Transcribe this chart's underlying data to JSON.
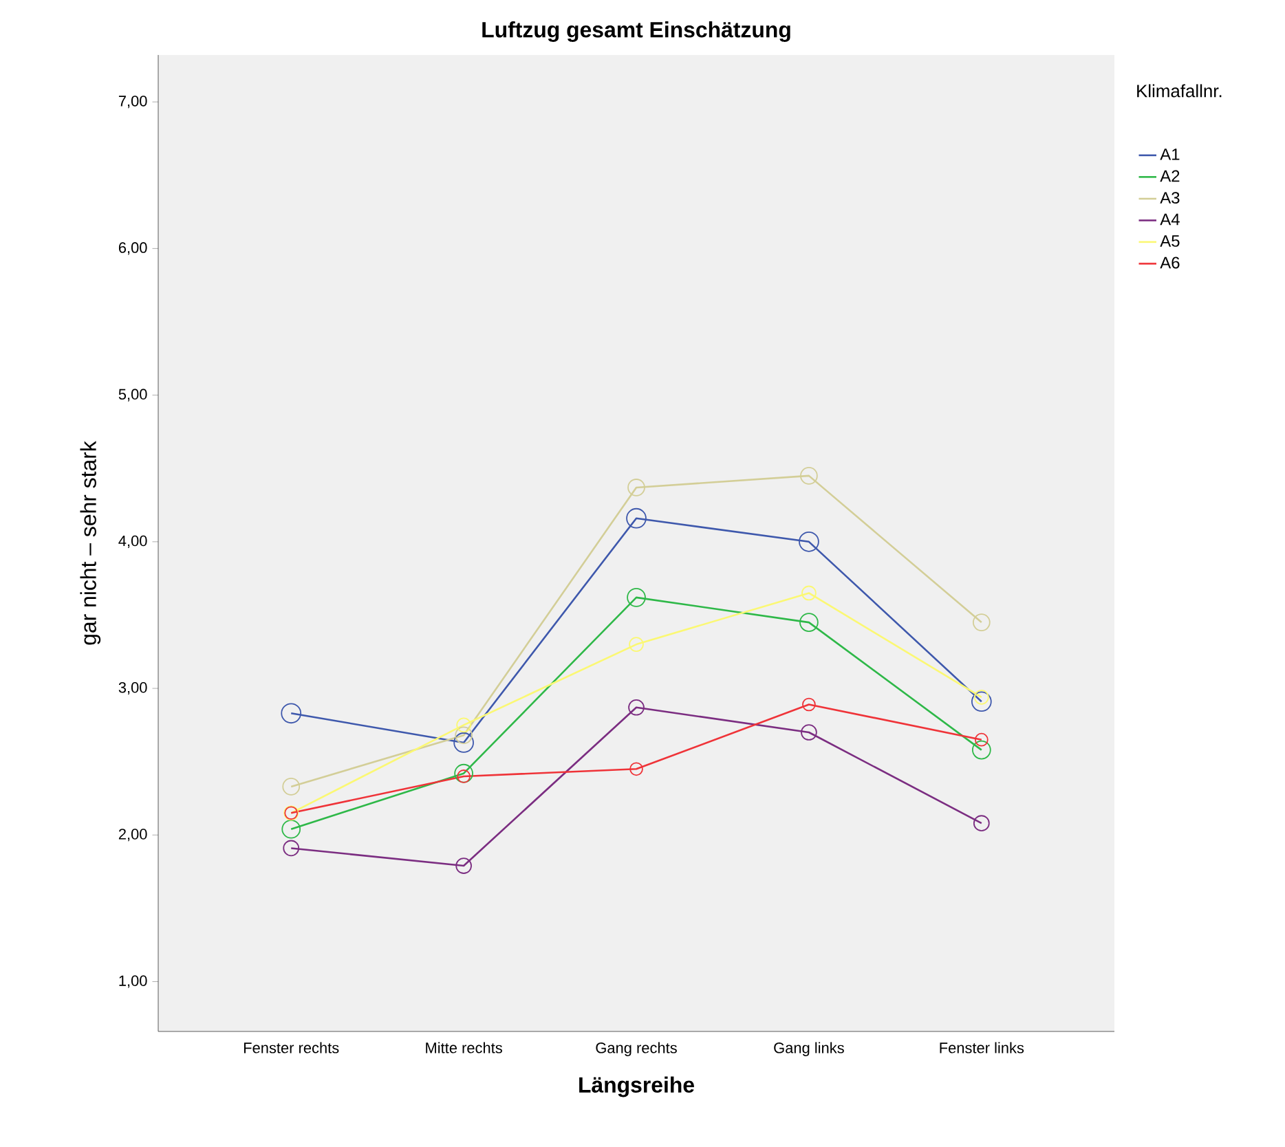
{
  "chart_data": {
    "type": "line",
    "title": "Luftzug gesamt Einschätzung",
    "xlabel": "Längsreihe",
    "ylabel": "gar nicht – sehr stark",
    "legend_title": "Klimafallnr.",
    "categories": [
      "Fenster rechts",
      "Mitte rechts",
      "Gang rechts",
      "Gang links",
      "Fenster links"
    ],
    "ylim": [
      0.66,
      7.32
    ],
    "yticks": [
      {
        "value": 1,
        "label": "1,00"
      },
      {
        "value": 2,
        "label": "2,00"
      },
      {
        "value": 3,
        "label": "3,00"
      },
      {
        "value": 4,
        "label": "4,00"
      },
      {
        "value": 5,
        "label": "5,00"
      },
      {
        "value": 6,
        "label": "6,00"
      },
      {
        "value": 7,
        "label": "7,00"
      }
    ],
    "grid": false,
    "legend": "right",
    "marker": "circle",
    "line_style": "solid",
    "series": [
      {
        "name": "A1",
        "color": "#3e58ac",
        "values": [
          2.83,
          2.63,
          4.16,
          4.0,
          2.91
        ]
      },
      {
        "name": "A2",
        "color": "#2eb848",
        "values": [
          2.04,
          2.42,
          3.62,
          3.45,
          2.58
        ]
      },
      {
        "name": "A3",
        "color": "#d3ce97",
        "values": [
          2.33,
          2.68,
          4.37,
          4.45,
          3.45
        ]
      },
      {
        "name": "A4",
        "color": "#7b2d81",
        "values": [
          1.91,
          1.79,
          2.87,
          2.7,
          2.08
        ]
      },
      {
        "name": "A5",
        "color": "#fbf873",
        "values": [
          2.15,
          2.75,
          3.3,
          3.65,
          2.94
        ]
      },
      {
        "name": "A6",
        "color": "#ef3338",
        "values": [
          2.15,
          2.4,
          2.45,
          2.89,
          2.65
        ]
      }
    ]
  }
}
